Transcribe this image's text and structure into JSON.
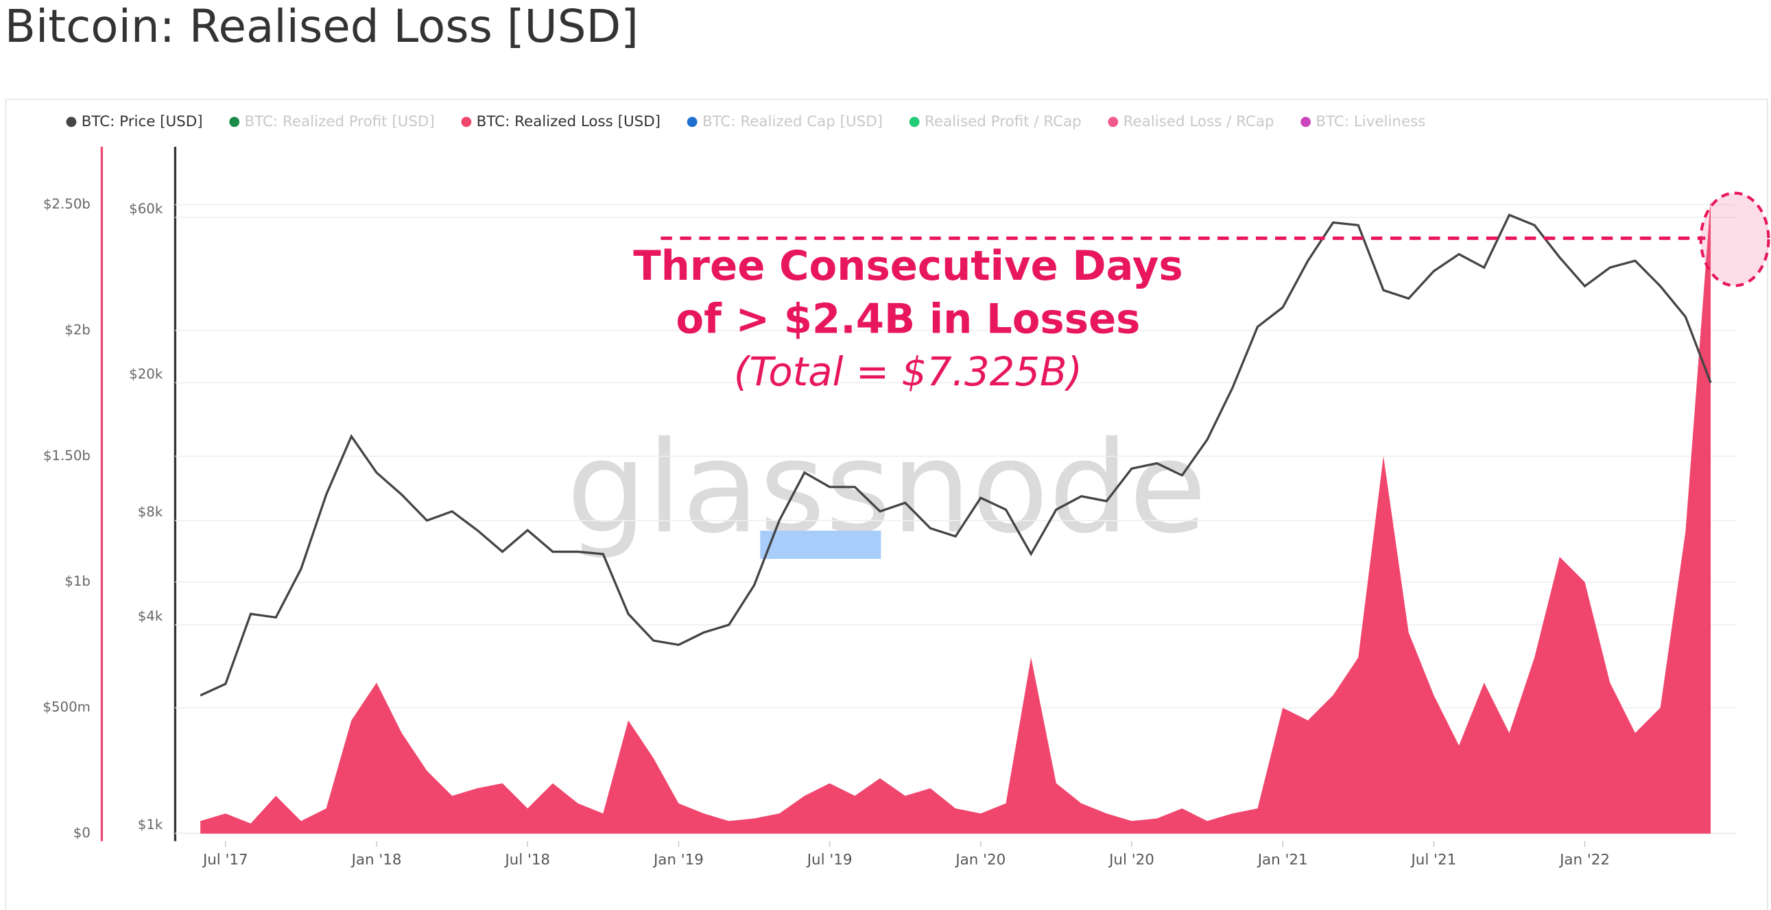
{
  "title": "Bitcoin: Realised Loss [USD]",
  "chart_data": {
    "type": "line-area",
    "x": [
      "2017-06",
      "2017-07",
      "2017-08",
      "2017-09",
      "2017-10",
      "2017-11",
      "2017-12",
      "2018-01",
      "2018-02",
      "2018-03",
      "2018-04",
      "2018-05",
      "2018-06",
      "2018-07",
      "2018-08",
      "2018-09",
      "2018-10",
      "2018-11",
      "2018-12",
      "2019-01",
      "2019-02",
      "2019-03",
      "2019-04",
      "2019-05",
      "2019-06",
      "2019-07",
      "2019-08",
      "2019-09",
      "2019-10",
      "2019-11",
      "2019-12",
      "2020-01",
      "2020-02",
      "2020-03",
      "2020-04",
      "2020-05",
      "2020-06",
      "2020-07",
      "2020-08",
      "2020-09",
      "2020-10",
      "2020-11",
      "2020-12",
      "2021-01",
      "2021-02",
      "2021-03",
      "2021-04",
      "2021-05",
      "2021-06",
      "2021-07",
      "2021-08",
      "2021-09",
      "2021-10",
      "2021-11",
      "2021-12",
      "2022-01",
      "2022-02",
      "2022-03",
      "2022-04",
      "2022-05",
      "2022-06"
    ],
    "xlim": [
      "2017-05",
      "2022-07"
    ],
    "xticks": [
      {
        "value": "2017-07",
        "label": "Jul '17"
      },
      {
        "value": "2018-01",
        "label": "Jan '18"
      },
      {
        "value": "2018-07",
        "label": "Jul '18"
      },
      {
        "value": "2019-01",
        "label": "Jan '19"
      },
      {
        "value": "2019-07",
        "label": "Jul '19"
      },
      {
        "value": "2020-01",
        "label": "Jan '20"
      },
      {
        "value": "2020-07",
        "label": "Jul '20"
      },
      {
        "value": "2021-01",
        "label": "Jan '21"
      },
      {
        "value": "2021-07",
        "label": "Jul '21"
      },
      {
        "value": "2022-01",
        "label": "Jan '22"
      }
    ],
    "ylim": [
      -0.03,
      2.73
    ],
    "yticks": [
      {
        "value": 0,
        "label": "$0"
      },
      {
        "value": 0.5,
        "label": "$500m"
      },
      {
        "value": 1,
        "label": "$1b"
      },
      {
        "value": 1.5,
        "label": "$1.50b"
      },
      {
        "value": 2,
        "label": "$2b"
      },
      {
        "value": 2.5,
        "label": "$2.50b"
      }
    ],
    "y2lim": [
      949,
      96000
    ],
    "y2ticks": [
      {
        "value": 1000,
        "label": "$1k"
      },
      {
        "value": 4000,
        "label": "$4k"
      },
      {
        "value": 8000,
        "label": "$8k"
      },
      {
        "value": 20000,
        "label": "$20k"
      },
      {
        "value": 60000,
        "label": "$60k"
      }
    ],
    "y2_log": true,
    "grid": true,
    "series": [
      {
        "name": "BTC: Price [USD]",
        "color": "#444444",
        "axis": "y2",
        "visible": true,
        "values": [
          2500,
          2700,
          4300,
          4200,
          5800,
          9500,
          14000,
          11000,
          9500,
          8000,
          8500,
          7500,
          6500,
          7500,
          6500,
          6500,
          6400,
          4300,
          3600,
          3500,
          3800,
          4000,
          5200,
          8000,
          11000,
          10000,
          10000,
          8500,
          9000,
          7600,
          7200,
          9300,
          8600,
          6400,
          8600,
          9400,
          9100,
          11300,
          11700,
          10800,
          13700,
          19300,
          29000,
          33000,
          45000,
          58000,
          57000,
          37000,
          35000,
          42000,
          47000,
          43000,
          61000,
          57000,
          46000,
          38000,
          43000,
          45000,
          38000,
          31000,
          20000
        ]
      },
      {
        "name": "BTC: Realized Profit [USD]",
        "color": "#1a8c4a",
        "visible": false
      },
      {
        "name": "BTC: Realized Loss [USD]",
        "color": "#f0466e",
        "visible": true,
        "values": [
          0.05,
          0.08,
          0.04,
          0.15,
          0.05,
          0.1,
          0.45,
          0.6,
          0.4,
          0.25,
          0.15,
          0.18,
          0.2,
          0.1,
          0.2,
          0.12,
          0.08,
          0.45,
          0.3,
          0.12,
          0.08,
          0.05,
          0.06,
          0.08,
          0.15,
          0.2,
          0.15,
          0.22,
          0.15,
          0.18,
          0.1,
          0.08,
          0.12,
          0.7,
          0.2,
          0.12,
          0.08,
          0.05,
          0.06,
          0.1,
          0.05,
          0.08,
          0.1,
          0.5,
          0.45,
          0.55,
          0.7,
          1.5,
          0.8,
          0.55,
          0.35,
          0.6,
          0.4,
          0.7,
          1.1,
          1.0,
          0.6,
          0.4,
          0.5,
          1.2,
          2.52
        ]
      },
      {
        "name": "BTC: Realized Cap [USD]",
        "color": "#1f6fd1",
        "visible": false
      },
      {
        "name": "Realised Profit / RCap",
        "color": "#22cc77",
        "visible": false
      },
      {
        "name": "Realised Loss / RCap",
        "color": "#f05a8a",
        "visible": false
      },
      {
        "name": "BTC: Liveliness",
        "color": "#cc44bb",
        "visible": false
      }
    ],
    "annotations": [
      "Three Consecutive Days",
      "of > $2.4B in Losses",
      "(Total = $7.325B)"
    ],
    "watermark": "glassnode"
  }
}
